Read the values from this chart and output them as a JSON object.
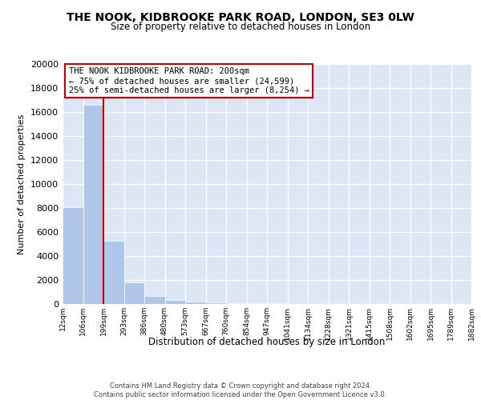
{
  "title": "THE NOOK, KIDBROOKE PARK ROAD, LONDON, SE3 0LW",
  "subtitle": "Size of property relative to detached houses in London",
  "xlabel": "Distribution of detached houses by size in London",
  "ylabel": "Number of detached properties",
  "bar_values": [
    8100,
    16600,
    5300,
    1800,
    650,
    350,
    200,
    150,
    100,
    100,
    50,
    30,
    20,
    15,
    10,
    8,
    5,
    5,
    3,
    3
  ],
  "bar_labels": [
    "12sqm",
    "106sqm",
    "199sqm",
    "293sqm",
    "386sqm",
    "480sqm",
    "573sqm",
    "667sqm",
    "760sqm",
    "854sqm",
    "947sqm",
    "1041sqm",
    "1134sqm",
    "1228sqm",
    "1321sqm",
    "1415sqm",
    "1508sqm",
    "1602sqm",
    "1695sqm",
    "1789sqm",
    "1882sqm"
  ],
  "bar_color": "#aec6e8",
  "vline_color": "#cc0000",
  "annotation_text_line1": "THE NOOK KIDBROOKE PARK ROAD: 200sqm",
  "annotation_text_line2": "← 75% of detached houses are smaller (24,599)",
  "annotation_text_line3": "25% of semi-detached houses are larger (8,254) →",
  "background_color": "#dce6f5",
  "grid_color": "#ffffff",
  "footer_text": "Contains HM Land Registry data © Crown copyright and database right 2024.\nContains public sector information licensed under the Open Government Licence v3.0.",
  "ylim": [
    0,
    20000
  ],
  "yticks": [
    0,
    2000,
    4000,
    6000,
    8000,
    10000,
    12000,
    14000,
    16000,
    18000,
    20000
  ]
}
